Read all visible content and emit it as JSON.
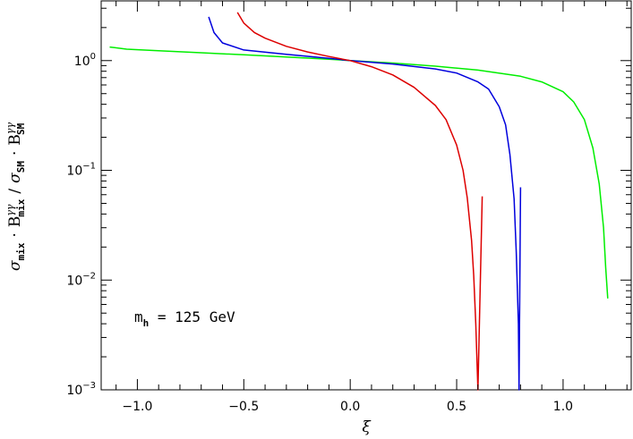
{
  "chart_data": {
    "type": "line",
    "xlabel": "ξ",
    "ylabel": {
      "sigma": "σ",
      "mix": "mix",
      "sm": "SM",
      "gg": "γγ",
      "B": "B",
      "dot": "·",
      "slash": "/"
    },
    "annotation": {
      "m": "m",
      "sub": "h",
      "rest": " = 125 GeV"
    },
    "xlim": [
      -1.17,
      1.32
    ],
    "ylim": [
      0.001,
      3.5
    ],
    "yscale": "log",
    "grid": false,
    "x_ticks": [
      {
        "value": -1.0,
        "label": "−1.0"
      },
      {
        "value": -0.5,
        "label": "−0.5"
      },
      {
        "value": 0.0,
        "label": "0.0"
      },
      {
        "value": 0.5,
        "label": "0.5"
      },
      {
        "value": 1.0,
        "label": "1.0"
      }
    ],
    "y_ticks": [
      {
        "value": 1,
        "base": "10",
        "exp": "0"
      },
      {
        "value": 0.1,
        "base": "10",
        "exp": "−1"
      },
      {
        "value": 0.01,
        "base": "10",
        "exp": "−2"
      },
      {
        "value": 0.001,
        "base": "10",
        "exp": "−3"
      }
    ],
    "series": [
      {
        "color": "#00ee00",
        "points": [
          [
            -1.13,
            1.33
          ],
          [
            -1.05,
            1.27
          ],
          [
            -0.9,
            1.23
          ],
          [
            -0.7,
            1.18
          ],
          [
            -0.5,
            1.13
          ],
          [
            -0.3,
            1.08
          ],
          [
            -0.1,
            1.03
          ],
          [
            0.0,
            1.0
          ],
          [
            0.2,
            0.95
          ],
          [
            0.4,
            0.89
          ],
          [
            0.6,
            0.82
          ],
          [
            0.8,
            0.72
          ],
          [
            0.9,
            0.64
          ],
          [
            1.0,
            0.52
          ],
          [
            1.05,
            0.42
          ],
          [
            1.1,
            0.29
          ],
          [
            1.14,
            0.16
          ],
          [
            1.17,
            0.075
          ],
          [
            1.19,
            0.03
          ],
          [
            1.2,
            0.013
          ],
          [
            1.21,
            0.0068
          ]
        ]
      },
      {
        "color": "#0000dd",
        "points": [
          [
            -0.665,
            2.5
          ],
          [
            -0.64,
            1.8
          ],
          [
            -0.6,
            1.45
          ],
          [
            -0.5,
            1.25
          ],
          [
            -0.3,
            1.14
          ],
          [
            -0.1,
            1.05
          ],
          [
            0.0,
            1.0
          ],
          [
            0.2,
            0.93
          ],
          [
            0.4,
            0.84
          ],
          [
            0.5,
            0.77
          ],
          [
            0.6,
            0.64
          ],
          [
            0.65,
            0.55
          ],
          [
            0.7,
            0.38
          ],
          [
            0.73,
            0.26
          ],
          [
            0.75,
            0.14
          ],
          [
            0.77,
            0.055
          ],
          [
            0.78,
            0.018
          ],
          [
            0.79,
            0.004
          ],
          [
            0.793,
            0.001
          ],
          [
            0.8,
            0.07
          ]
        ]
      },
      {
        "color": "#dd0000",
        "points": [
          [
            -0.53,
            2.75
          ],
          [
            -0.5,
            2.2
          ],
          [
            -0.45,
            1.8
          ],
          [
            -0.4,
            1.6
          ],
          [
            -0.3,
            1.35
          ],
          [
            -0.2,
            1.2
          ],
          [
            -0.1,
            1.09
          ],
          [
            0.0,
            1.0
          ],
          [
            0.1,
            0.88
          ],
          [
            0.2,
            0.74
          ],
          [
            0.3,
            0.57
          ],
          [
            0.4,
            0.39
          ],
          [
            0.45,
            0.29
          ],
          [
            0.5,
            0.17
          ],
          [
            0.53,
            0.1
          ],
          [
            0.55,
            0.056
          ],
          [
            0.57,
            0.023
          ],
          [
            0.58,
            0.011
          ],
          [
            0.59,
            0.004
          ],
          [
            0.6,
            0.001
          ],
          [
            0.62,
            0.058
          ]
        ]
      }
    ]
  }
}
